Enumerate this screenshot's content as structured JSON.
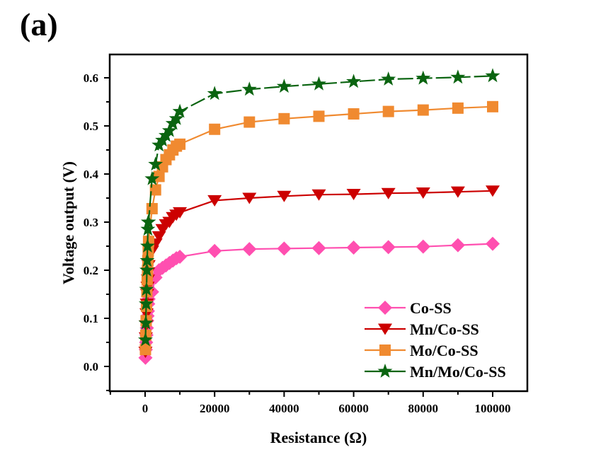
{
  "figure": {
    "panel_label": "(a)"
  },
  "chart_data": {
    "type": "line",
    "title": "",
    "xlabel": "Resistance (Ω)",
    "ylabel": "Voltage output (V)",
    "xlim": [
      -10000,
      110000
    ],
    "ylim": [
      -0.05,
      0.65
    ],
    "xticks": [
      0,
      20000,
      40000,
      60000,
      80000,
      100000
    ],
    "xtick_labels": [
      "0",
      "20000",
      "40000",
      "60000",
      "80000",
      "100000"
    ],
    "yticks": [
      0.0,
      0.1,
      0.2,
      0.3,
      0.4,
      0.5,
      0.6
    ],
    "ytick_labels": [
      "0.0",
      "0.1",
      "0.2",
      "0.3",
      "0.4",
      "0.5",
      "0.6"
    ],
    "grid": false,
    "legend_position": "bottom-right",
    "series": [
      {
        "name": "Co-SS",
        "color": "#ff4fb0",
        "marker": "diamond",
        "x": [
          100,
          200,
          300,
          400,
          500,
          600,
          700,
          800,
          900,
          1000,
          2000,
          3000,
          4000,
          5000,
          6000,
          7000,
          8000,
          9000,
          10000,
          20000,
          30000,
          40000,
          50000,
          60000,
          70000,
          80000,
          90000,
          100000
        ],
        "y": [
          0.018,
          0.035,
          0.05,
          0.065,
          0.08,
          0.095,
          0.105,
          0.115,
          0.13,
          0.14,
          0.155,
          0.185,
          0.2,
          0.205,
          0.21,
          0.215,
          0.22,
          0.225,
          0.228,
          0.24,
          0.244,
          0.245,
          0.246,
          0.247,
          0.248,
          0.249,
          0.252,
          0.255
        ]
      },
      {
        "name": "Mn/Co-SS",
        "color": "#cc0000",
        "marker": "triangle-down",
        "x": [
          100,
          200,
          300,
          400,
          500,
          600,
          700,
          800,
          900,
          1000,
          2000,
          3000,
          4000,
          5000,
          6000,
          7000,
          8000,
          9000,
          10000,
          20000,
          30000,
          40000,
          50000,
          60000,
          70000,
          80000,
          90000,
          100000
        ],
        "y": [
          0.03,
          0.06,
          0.085,
          0.11,
          0.13,
          0.15,
          0.165,
          0.18,
          0.195,
          0.21,
          0.24,
          0.255,
          0.27,
          0.285,
          0.295,
          0.3,
          0.31,
          0.315,
          0.32,
          0.345,
          0.35,
          0.354,
          0.357,
          0.358,
          0.36,
          0.361,
          0.363,
          0.365
        ]
      },
      {
        "name": "Mo/Co-SS",
        "color": "#f08a30",
        "marker": "square",
        "x": [
          100,
          200,
          300,
          400,
          500,
          600,
          700,
          800,
          900,
          1000,
          2000,
          3000,
          4000,
          5000,
          6000,
          7000,
          8000,
          9000,
          10000,
          20000,
          30000,
          40000,
          50000,
          60000,
          70000,
          80000,
          90000,
          100000
        ],
        "y": [
          0.035,
          0.065,
          0.095,
          0.125,
          0.155,
          0.18,
          0.2,
          0.22,
          0.24,
          0.26,
          0.328,
          0.367,
          0.395,
          0.415,
          0.43,
          0.44,
          0.45,
          0.458,
          0.462,
          0.493,
          0.508,
          0.515,
          0.52,
          0.525,
          0.53,
          0.533,
          0.537,
          0.54
        ]
      },
      {
        "name": "Mn/Mo/Co-SS",
        "color": "#0a6410",
        "marker": "star",
        "x": [
          100,
          200,
          300,
          400,
          500,
          600,
          700,
          800,
          900,
          1000,
          2000,
          3000,
          4000,
          5000,
          6000,
          7000,
          8000,
          9000,
          10000,
          20000,
          30000,
          40000,
          50000,
          60000,
          70000,
          80000,
          90000,
          100000
        ],
        "y": [
          0.055,
          0.09,
          0.13,
          0.16,
          0.2,
          0.22,
          0.25,
          0.285,
          0.3,
          0.3,
          0.39,
          0.42,
          0.46,
          0.47,
          0.48,
          0.49,
          0.505,
          0.515,
          0.53,
          0.567,
          0.576,
          0.582,
          0.587,
          0.592,
          0.597,
          0.599,
          0.601,
          0.604
        ]
      }
    ]
  }
}
